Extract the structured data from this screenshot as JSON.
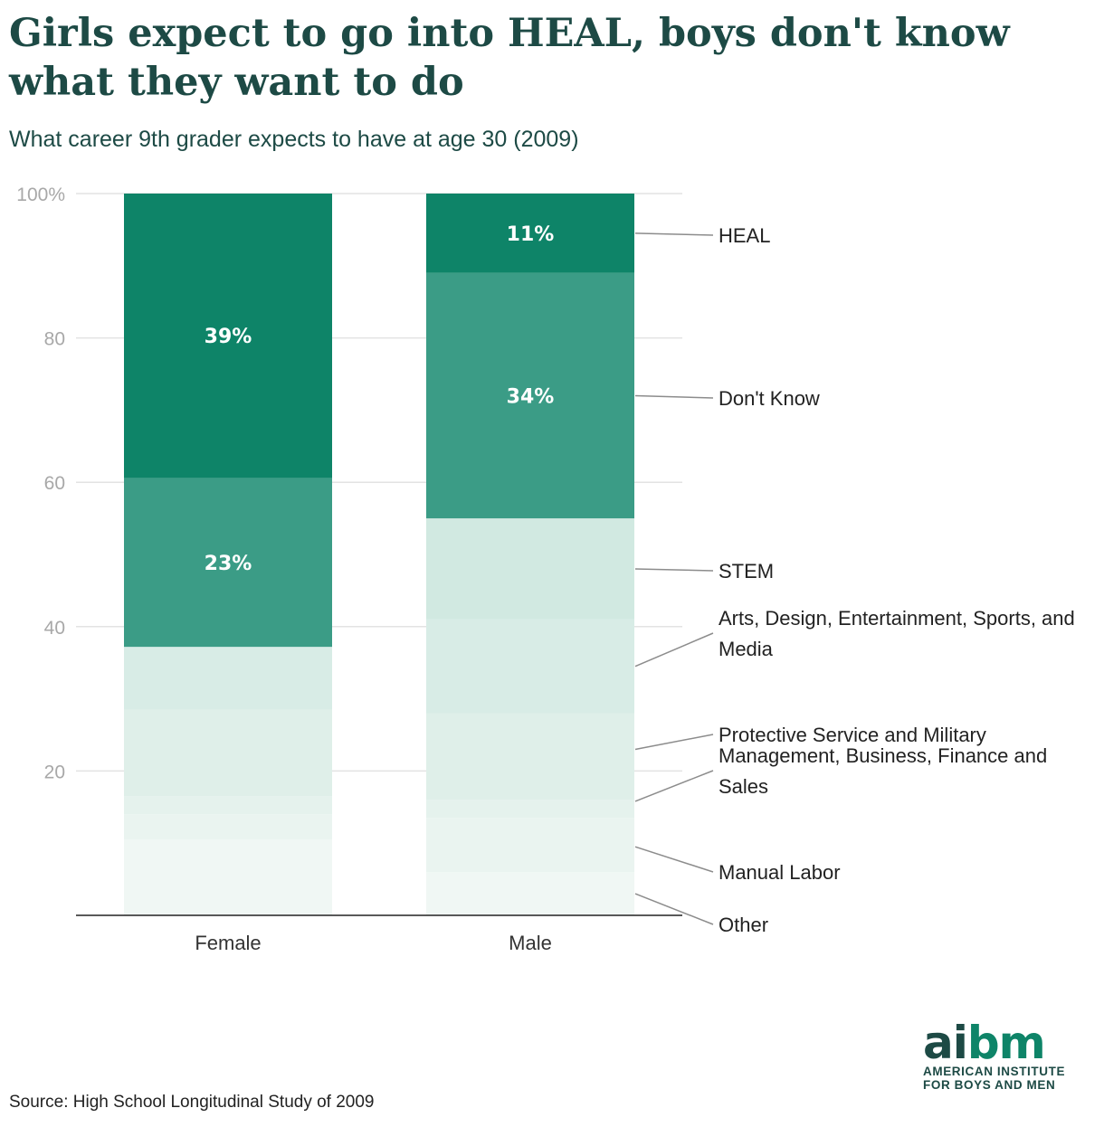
{
  "title": "Girls expect to go into HEAL, boys don't know what they want to do",
  "subtitle": "What career 9th grader expects to have at age 30 (2009)",
  "source": "Source: High School Longitudinal Study of 2009",
  "logo": {
    "wordmark_a": "ai",
    "wordmark_b": "bm",
    "line1": "AMERICAN INSTITUTE",
    "line2": "FOR BOYS AND MEN"
  },
  "chart_data": {
    "type": "bar",
    "stacked": true,
    "categories": [
      "Female",
      "Male"
    ],
    "ylim": [
      0,
      100
    ],
    "yticks": [
      20,
      40,
      60,
      80,
      100
    ],
    "ytick_labels": [
      "20",
      "40",
      "60",
      "80",
      "100%"
    ],
    "series": [
      {
        "name": "Other",
        "values": [
          10.5,
          6
        ],
        "color": "#f0f7f4",
        "label": [
          "",
          ""
        ]
      },
      {
        "name": "Manual Labor",
        "values": [
          3.5,
          7.5
        ],
        "color": "#eaf4f0",
        "label": [
          "",
          ""
        ]
      },
      {
        "name": "Management, Business, Finance and Sales",
        "values": [
          2.5,
          2.5
        ],
        "color": "#e5f2ed",
        "label": [
          "",
          ""
        ]
      },
      {
        "name": "Protective Service and Military",
        "values": [
          12,
          12
        ],
        "color": "#dfefe9",
        "label": [
          "",
          ""
        ]
      },
      {
        "name": "Arts, Design, Entertainment, Sports, and Media",
        "values": [
          8.7,
          13
        ],
        "color": "#d8ece6",
        "label": [
          "",
          ""
        ]
      },
      {
        "name": "STEM",
        "values": [
          0,
          14
        ],
        "color": "#d1e9e1",
        "label": [
          "",
          ""
        ]
      },
      {
        "name": "Don't Know",
        "values": [
          23.4,
          34
        ],
        "color": "#3b9c86",
        "label": [
          "23%",
          "34%"
        ]
      },
      {
        "name": "HEAL",
        "values": [
          39.4,
          11
        ],
        "color": "#0e8468",
        "label": [
          "39%",
          "11%"
        ]
      }
    ],
    "legend_labels": [
      {
        "text": "HEAL",
        "anchor": 94.5
      },
      {
        "text": "Don't Know",
        "anchor": 72
      },
      {
        "text": "STEM",
        "anchor": 48
      },
      {
        "text": "Arts, Design, Entertainment, Sports, and Media",
        "anchor": 34.5
      },
      {
        "text": "Protective Service and Military",
        "anchor": 23
      },
      {
        "text": "Management, Business, Finance and Sales",
        "anchor": 15.8
      },
      {
        "text": "Manual Labor",
        "anchor": 9.5
      },
      {
        "text": "Other",
        "anchor": 3
      }
    ]
  }
}
